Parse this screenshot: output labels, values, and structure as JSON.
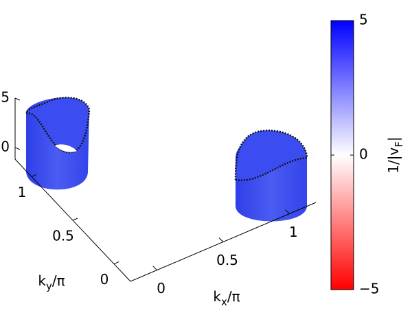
{
  "chart_data": {
    "type": "surface3d",
    "xlabel": [
      "k",
      "x",
      "/π"
    ],
    "ylabel": [
      "k",
      "y",
      "/π"
    ],
    "xlim": [
      -0.2,
      1.2
    ],
    "xticks": [
      0,
      0.5,
      1
    ],
    "ylim": [
      -0.2,
      1.2
    ],
    "yticks": [
      0,
      0.5,
      1
    ],
    "zlim": [
      -1.2,
      5
    ],
    "zticks": [
      0,
      5
    ],
    "colorbar": {
      "label": [
        "1/|v",
        "F",
        "|"
      ],
      "clim": [
        -5,
        5
      ],
      "ticks": [
        {
          "value": -5,
          "label": "−5"
        },
        0,
        5
      ],
      "colormap": [
        "#ff0000",
        "#ffffff",
        "#0000ff"
      ]
    }
  }
}
